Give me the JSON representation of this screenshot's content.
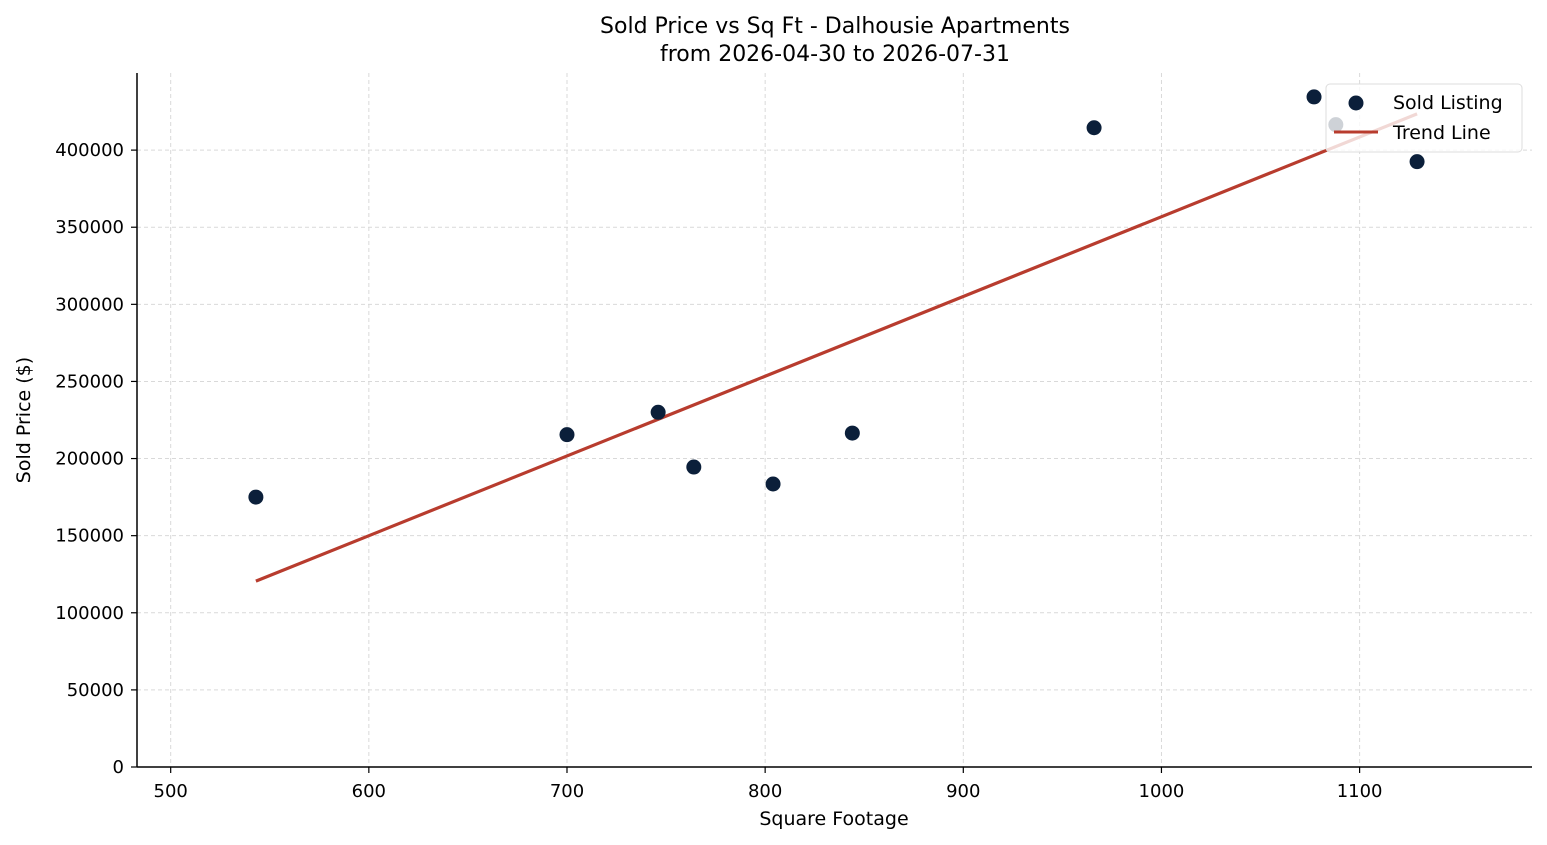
{
  "chart_data": {
    "type": "scatter",
    "title": "Sold Price vs Sq Ft - Dalhousie Apartments",
    "subtitle": "from 2026-04-30 to 2026-07-31",
    "xlabel": "Square Footage",
    "ylabel": "Sold Price ($)",
    "xlim": [
      483,
      1187
    ],
    "ylim": [
      0,
      450000
    ],
    "xticks": [
      500,
      600,
      700,
      800,
      900,
      1000,
      1100
    ],
    "yticks": [
      0,
      50000,
      100000,
      150000,
      200000,
      250000,
      300000,
      350000,
      400000
    ],
    "grid": true,
    "legend_position": "top-right",
    "series": [
      {
        "name": "Sold Listing",
        "kind": "scatter",
        "color": "#0b1f3a",
        "points": [
          {
            "x": 543,
            "y": 175000
          },
          {
            "x": 700,
            "y": 215500
          },
          {
            "x": 746,
            "y": 230000
          },
          {
            "x": 764,
            "y": 194500
          },
          {
            "x": 804,
            "y": 183500
          },
          {
            "x": 844,
            "y": 216500
          },
          {
            "x": 966,
            "y": 414500
          },
          {
            "x": 1077,
            "y": 434500
          },
          {
            "x": 1088,
            "y": 416500
          },
          {
            "x": 1129,
            "y": 392500
          }
        ]
      },
      {
        "name": "Trend Line",
        "kind": "line",
        "color": "#b83c2e",
        "points": [
          {
            "x": 543,
            "y": 120500
          },
          {
            "x": 1129,
            "y": 423500
          }
        ]
      }
    ]
  }
}
